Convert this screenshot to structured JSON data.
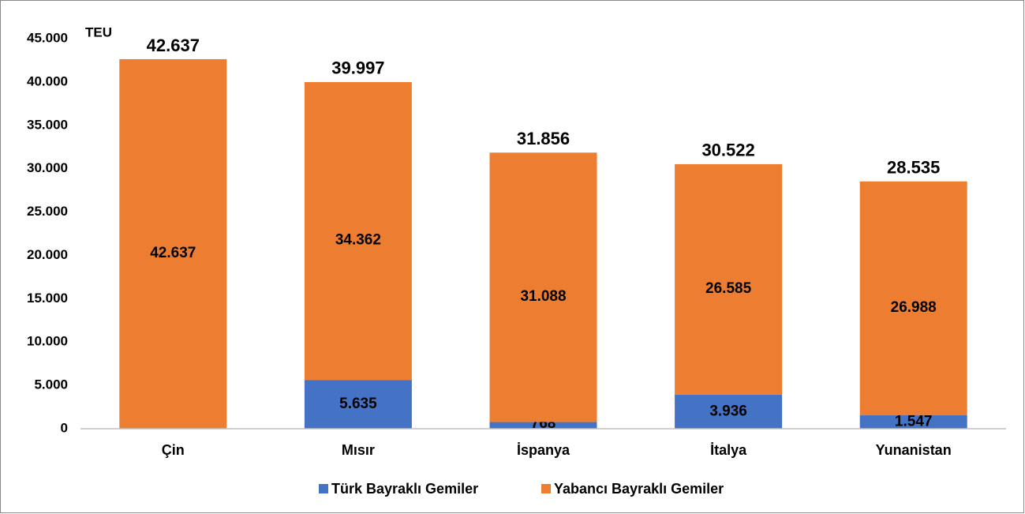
{
  "chart_data": {
    "type": "stacked_bar",
    "y_label": "TEU",
    "categories": [
      "Çin",
      "Mısır",
      "İspanya",
      "İtalya",
      "Yunanistan"
    ],
    "series": [
      {
        "name": "Türk Bayraklı Gemiler",
        "color": "#4472c4",
        "values": [
          null,
          5635,
          768,
          3936,
          1547
        ],
        "value_labels": [
          null,
          "5.635",
          "768",
          "3.936",
          "1.547"
        ]
      },
      {
        "name": "Yabancı Bayraklı Gemiler",
        "color": "#ed7d31",
        "values": [
          42637,
          34362,
          31088,
          26585,
          26988
        ],
        "value_labels": [
          "42.637",
          "34.362",
          "31.088",
          "26.585",
          "26.988"
        ]
      }
    ],
    "totals": {
      "values": [
        42637,
        39997,
        31856,
        30522,
        28535
      ],
      "value_labels": [
        "42.637",
        "39.997",
        "31.856",
        "30.522",
        "28.535"
      ]
    },
    "ylim": [
      0,
      45000
    ],
    "yticks": [
      0,
      {
        "value": 5000,
        "label": "5.000"
      },
      {
        "value": 10000,
        "label": "10.000"
      },
      {
        "value": 15000,
        "label": "15.000"
      },
      {
        "value": 20000,
        "label": "20.000"
      },
      {
        "value": 25000,
        "label": "25.000"
      },
      {
        "value": 30000,
        "label": "30.000"
      },
      {
        "value": 35000,
        "label": "35.000"
      },
      {
        "value": 40000,
        "label": "40.000"
      },
      {
        "value": 45000,
        "label": "45.000"
      }
    ],
    "grid": false,
    "legend": "bottom"
  }
}
